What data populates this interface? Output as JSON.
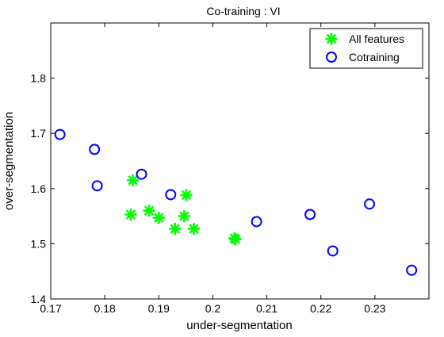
{
  "chart_data": {
    "type": "scatter",
    "title": "Co-training : VI",
    "xlabel": "under-segmentation",
    "ylabel": "over-segmentation",
    "xlim": [
      0.17,
      0.24
    ],
    "ylim": [
      1.4,
      1.9
    ],
    "xticks": [
      0.17,
      0.18,
      0.19,
      0.2,
      0.21,
      0.22,
      0.23
    ],
    "xtick_labels": [
      "0.17",
      "0.18",
      "0.19",
      "0.2",
      "0.21",
      "0.22",
      "0.23"
    ],
    "yticks": [
      1.4,
      1.5,
      1.6,
      1.7,
      1.8
    ],
    "ytick_labels": [
      "1.4",
      "1.5",
      "1.6",
      "1.7",
      "1.8"
    ],
    "grid": false,
    "legend_position": "top-right",
    "series": [
      {
        "name": "All features",
        "marker": "asterisk",
        "color": "#00ff00",
        "points": [
          {
            "x": 0.1848,
            "y": 1.553
          },
          {
            "x": 0.1852,
            "y": 1.615
          },
          {
            "x": 0.1882,
            "y": 1.56
          },
          {
            "x": 0.19,
            "y": 1.547
          },
          {
            "x": 0.193,
            "y": 1.527
          },
          {
            "x": 0.1947,
            "y": 1.55
          },
          {
            "x": 0.1951,
            "y": 1.588
          },
          {
            "x": 0.1965,
            "y": 1.527
          },
          {
            "x": 0.204,
            "y": 1.51
          },
          {
            "x": 0.2042,
            "y": 1.508
          }
        ]
      },
      {
        "name": "Cotraining",
        "marker": "circle",
        "color": "#0000ff",
        "points": [
          {
            "x": 0.1717,
            "y": 1.698
          },
          {
            "x": 0.1781,
            "y": 1.671
          },
          {
            "x": 0.1786,
            "y": 1.605
          },
          {
            "x": 0.1868,
            "y": 1.626
          },
          {
            "x": 0.1922,
            "y": 1.589
          },
          {
            "x": 0.2081,
            "y": 1.54
          },
          {
            "x": 0.218,
            "y": 1.553
          },
          {
            "x": 0.2222,
            "y": 1.487
          },
          {
            "x": 0.229,
            "y": 1.572
          },
          {
            "x": 0.2368,
            "y": 1.452
          }
        ]
      }
    ]
  }
}
